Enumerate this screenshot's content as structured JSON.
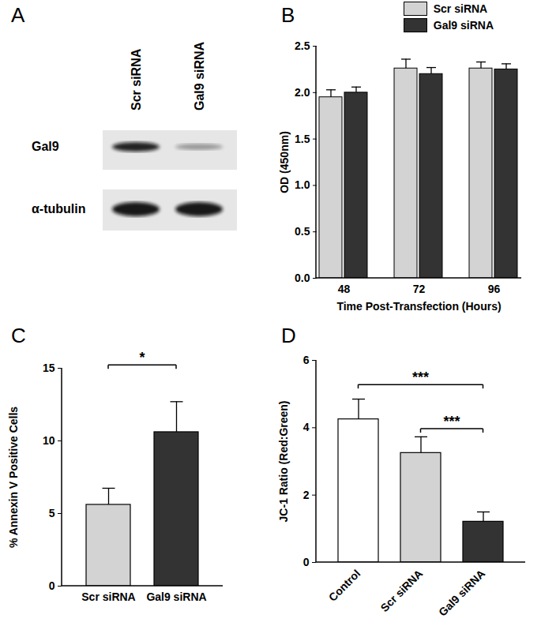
{
  "chart_data": [
    {
      "panel": "A",
      "type": "western_blot",
      "lanes": [
        "Scr siRNA",
        "Gal9 siRNA"
      ],
      "bands": [
        "Gal9",
        "α-tubulin"
      ]
    },
    {
      "panel": "B",
      "type": "bar",
      "categories": [
        48,
        72,
        96
      ],
      "x_label": "Time Post-Transfection (Hours)",
      "y_label": "OD (450nm)",
      "series": [
        {
          "name": "Scr siRNA",
          "color": "#d3d3d3",
          "values": [
            1.95,
            2.26,
            2.26
          ],
          "errors": [
            0.08,
            0.1,
            0.07
          ]
        },
        {
          "name": "Gal9 siRNA",
          "color": "#333333",
          "values": [
            2.0,
            2.2,
            2.25
          ],
          "errors": [
            0.06,
            0.07,
            0.06
          ]
        }
      ],
      "ylim": [
        0,
        2.5
      ],
      "yticks": [
        {
          "value": 0,
          "label": "0.0"
        },
        0.5,
        {
          "value": 1,
          "label": "1.0"
        },
        1.5,
        {
          "value": 2,
          "label": "2.0"
        },
        2.5
      ],
      "legend": "top"
    },
    {
      "panel": "C",
      "type": "bar",
      "categories": [
        "Scr siRNA",
        "Gal9 siRNA"
      ],
      "values": [
        5.6,
        10.6
      ],
      "errors": [
        1.14,
        2.1
      ],
      "colors": [
        "#d3d3d3",
        "#333333"
      ],
      "y_label": "% Annexin V Positive Cells",
      "ylim": [
        0,
        15
      ],
      "yticks": [
        0,
        5,
        10,
        15
      ],
      "annotations": [
        {
          "from": "Scr siRNA",
          "to": "Gal9 siRNA",
          "y": 15.2,
          "label": "*"
        }
      ]
    },
    {
      "panel": "D",
      "type": "bar",
      "categories": [
        "Control",
        "Scr siRNA",
        "Gal9 siRNA"
      ],
      "values": [
        4.25,
        3.25,
        1.21
      ],
      "errors": [
        0.6,
        0.48,
        0.29
      ],
      "colors": [
        "#ffffff",
        "#d3d3d3",
        "#333333"
      ],
      "y_label": "JC-1 Ratio (Red:Green)",
      "ylim": [
        0,
        6
      ],
      "yticks": [
        0,
        2,
        4,
        6
      ],
      "annotations": [
        {
          "from": "Control",
          "to": "Gal9 siRNA",
          "y": 5.27,
          "label": "***"
        },
        {
          "from": "Scr siRNA",
          "to": "Gal9 siRNA",
          "y": 3.96,
          "label": "***"
        }
      ]
    }
  ]
}
